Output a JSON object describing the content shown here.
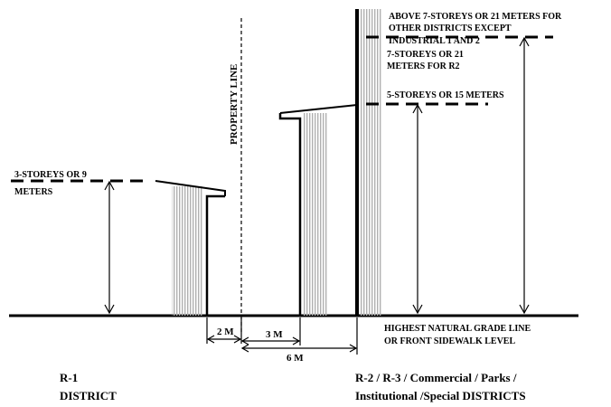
{
  "labels": {
    "property_line": "PROPERTY LINE",
    "r1_height": [
      "3-STOREYS OR 9",
      "METERS"
    ],
    "mid_height": "5-STOREYS OR 15 METERS",
    "r2_height": [
      "7-STOREYS OR 21",
      "METERS FOR R2"
    ],
    "above_height": [
      "ABOVE 7-STOREYS OR 21 METERS FOR",
      "OTHER DISTRICTS EXCEPT",
      "INDUSTRIAL 1 AND 2"
    ],
    "grade_line": [
      "HIGHEST NATURAL GRADE LINE",
      "OR FRONT SIDEWALK LEVEL"
    ],
    "dim_2m": "2 M",
    "dim_3m": "3 M",
    "dim_6m": "6 M",
    "r1_district": [
      "R-1",
      "DISTRICT"
    ],
    "other_districts": [
      "R-2 / R-3 / Commercial / Parks /",
      "Institutional /Special DISTRICTS"
    ]
  },
  "colors": {
    "line": "#000000",
    "hatch": "#b8b8b8"
  }
}
